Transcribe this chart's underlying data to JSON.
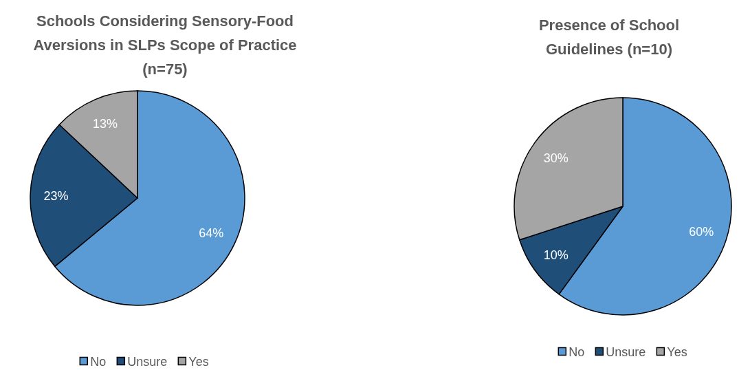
{
  "chart_data": [
    {
      "type": "pie",
      "title": "Schools Considering Sensory-Food Aversions in SLPs Scope of Practice (n=75)",
      "categories": [
        "No",
        "Unsure",
        "Yes"
      ],
      "values": [
        64,
        23,
        13
      ],
      "value_labels": [
        "64%",
        "23%",
        "13%"
      ],
      "colors": [
        "#5b9bd5",
        "#1f4e79",
        "#a5a5a5"
      ],
      "legend": "bottom"
    },
    {
      "type": "pie",
      "title": "Presence of School Guidelines (n=10)",
      "categories": [
        "No",
        "Unsure",
        "Yes"
      ],
      "values": [
        60,
        10,
        30
      ],
      "value_labels": [
        "60%",
        "10%",
        "30%"
      ],
      "colors": [
        "#5b9bd5",
        "#1f4e79",
        "#a5a5a5"
      ],
      "legend": "bottom"
    }
  ]
}
